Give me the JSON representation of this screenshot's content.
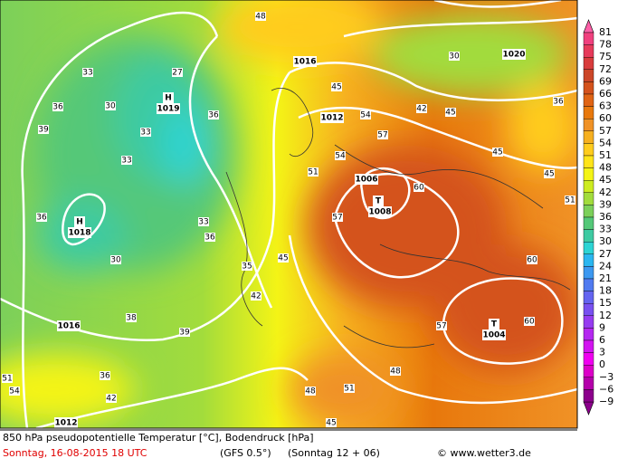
{
  "map": {
    "pressure_labels": [
      "H",
      "1019",
      "H",
      "1018",
      "T",
      "1008",
      "1006",
      "T",
      "1004",
      "1016",
      "1012",
      "1020",
      "1016",
      "1012"
    ],
    "isotherm_labels": [
      "33",
      "27",
      "36",
      "30",
      "39",
      "33",
      "36",
      "33",
      "36",
      "33",
      "36",
      "30",
      "35",
      "42",
      "45",
      "39",
      "38",
      "51",
      "54",
      "57",
      "60",
      "57",
      "45",
      "51",
      "60",
      "57",
      "60",
      "48",
      "51",
      "42",
      "36",
      "45",
      "48",
      "54",
      "51",
      "45",
      "42",
      "45",
      "36",
      "48",
      "45",
      "30",
      "54"
    ]
  },
  "colorbar": [
    {
      "label": "81",
      "color": "#ff5fa8"
    },
    {
      "label": "78",
      "color": "#f0407e"
    },
    {
      "label": "75",
      "color": "#e63a5a"
    },
    {
      "label": "72",
      "color": "#d83c3c"
    },
    {
      "label": "69",
      "color": "#cc4628"
    },
    {
      "label": "66",
      "color": "#d4521c"
    },
    {
      "label": "63",
      "color": "#e06414"
    },
    {
      "label": "60",
      "color": "#e8780c"
    },
    {
      "label": "57",
      "color": "#f09226"
    },
    {
      "label": "54",
      "color": "#f6b020"
    },
    {
      "label": "51",
      "color": "#ffcc1e"
    },
    {
      "label": "48",
      "color": "#ffe41a"
    },
    {
      "label": "45",
      "color": "#f4f416"
    },
    {
      "label": "42",
      "color": "#cdec20"
    },
    {
      "label": "39",
      "color": "#a2dc3c"
    },
    {
      "label": "36",
      "color": "#7cd05a"
    },
    {
      "label": "33",
      "color": "#54c878"
    },
    {
      "label": "30",
      "color": "#3ecaa2"
    },
    {
      "label": "27",
      "color": "#2cd4d4"
    },
    {
      "label": "24",
      "color": "#2ab6f0"
    },
    {
      "label": "21",
      "color": "#3c98f0"
    },
    {
      "label": "18",
      "color": "#507af0"
    },
    {
      "label": "15",
      "color": "#6464f0"
    },
    {
      "label": "12",
      "color": "#7850f0"
    },
    {
      "label": "9",
      "color": "#963cf0"
    },
    {
      "label": "6",
      "color": "#b428f0"
    },
    {
      "label": "3",
      "color": "#d214f0"
    },
    {
      "label": "0",
      "color": "#f000f0"
    },
    {
      "label": "−3",
      "color": "#dc00c8"
    },
    {
      "label": "−6",
      "color": "#b400aa"
    },
    {
      "label": "−9",
      "color": "#8c008c"
    }
  ],
  "footer": {
    "parameter": "850 hPa pseudopotentielle Temperatur [°C], Bodendruck [hPa]",
    "date": "Sonntag, 16-08-2015  18 UTC",
    "model": "(GFS 0.5°)",
    "run": "(Sonntag 12 + 06)",
    "credit": "© www.wetter3.de"
  }
}
